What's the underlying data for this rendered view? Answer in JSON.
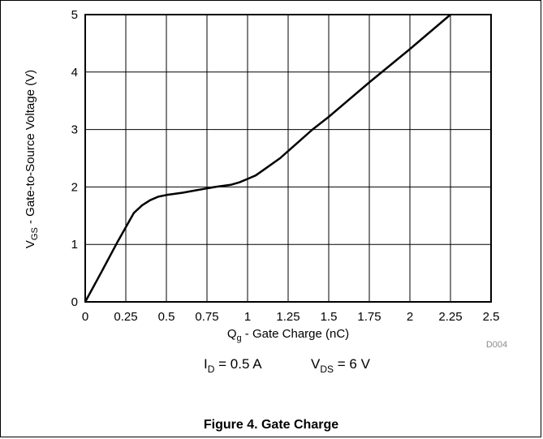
{
  "chart_data": {
    "type": "line",
    "title": "",
    "xlabel": {
      "main": "Q",
      "sub": "g",
      "rest": " - Gate Charge (nC)"
    },
    "ylabel": {
      "main": "V",
      "sub": "GS",
      "rest": " - Gate-to-Source Voltage (V)"
    },
    "xlim": [
      0,
      2.5
    ],
    "ylim": [
      0,
      5
    ],
    "xticks": [
      "0",
      "0.25",
      "0.5",
      "0.75",
      "1",
      "1.25",
      "1.5",
      "1.75",
      "2",
      "2.25",
      "2.5"
    ],
    "yticks": [
      "0",
      "1",
      "2",
      "3",
      "4",
      "5"
    ],
    "grid": true,
    "series": [
      {
        "x": [
          0,
          0.1,
          0.2,
          0.3,
          0.35,
          0.4,
          0.45,
          0.5,
          0.6,
          0.7,
          0.8,
          0.9,
          0.95,
          1.0,
          1.05,
          1.1,
          1.2,
          1.3,
          1.4,
          1.5,
          1.75,
          2.0,
          2.25
        ],
        "y": [
          0,
          0.52,
          1.05,
          1.55,
          1.68,
          1.77,
          1.83,
          1.86,
          1.9,
          1.95,
          2.0,
          2.04,
          2.08,
          2.14,
          2.2,
          2.3,
          2.5,
          2.75,
          3.0,
          3.22,
          3.82,
          4.4,
          5.0
        ]
      }
    ],
    "code": "D004",
    "conditions": [
      {
        "main": "I",
        "sub": "D",
        "rest": " = 0.5 A"
      },
      {
        "main": "V",
        "sub": "DS",
        "rest": " = 6 V"
      }
    ]
  },
  "caption": "Figure 4. Gate Charge"
}
